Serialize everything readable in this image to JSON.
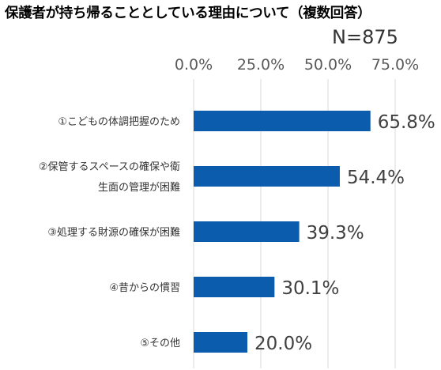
{
  "chart_data": {
    "type": "bar",
    "orientation": "horizontal",
    "title": "保護者が持ち帰ることとしている理由について（複数回答）",
    "note": "N=875",
    "categories": [
      [
        "①こどもの体調把握のため"
      ],
      [
        "②保管するスペースの確保や衛",
        "生面の管理が困難"
      ],
      [
        "③処理する財源の確保が困難"
      ],
      [
        "④昔からの慣習"
      ],
      [
        "⑤その他"
      ]
    ],
    "values": [
      65.8,
      54.4,
      39.3,
      30.1,
      20.0
    ],
    "value_labels": [
      "65.8%",
      "54.4%",
      "39.3%",
      "30.1%",
      "20.0%"
    ],
    "xlim": [
      0,
      75
    ],
    "xticks": [
      0,
      25,
      50,
      75
    ],
    "xtick_labels": [
      "0.0%",
      "25.0%",
      "50.0%",
      "75.0%"
    ],
    "xaxis_position": "top",
    "grid": true,
    "legend": "none",
    "bar_color": "#0b5cad"
  }
}
